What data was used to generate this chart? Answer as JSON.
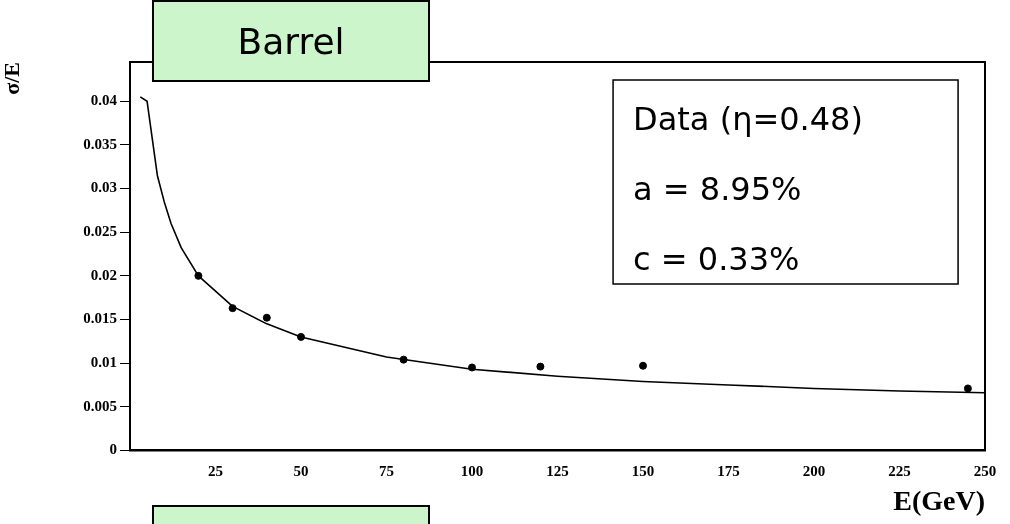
{
  "chart_data": {
    "type": "scatter",
    "title": "Barrel",
    "xlabel": "E(GeV)",
    "ylabel": "σ/E",
    "annotations": [
      "Data (η=0.48)",
      "a = 8.95%",
      "c = 0.33%"
    ],
    "xlim": [
      0,
      250
    ],
    "xticks": [
      25,
      50,
      75,
      100,
      125,
      150,
      175,
      200,
      225,
      250
    ],
    "ylim": [
      0,
      0.0445
    ],
    "yticks": [
      0,
      0.005,
      0.01,
      0.015,
      0.02,
      0.025,
      0.03,
      0.035,
      0.04
    ],
    "grid": false,
    "legend": false,
    "marker": "circle",
    "series": [
      {
        "color": "#000000",
        "x": [
          20,
          30,
          40,
          50,
          80,
          100,
          120,
          150,
          245
        ],
        "values": [
          0.02,
          0.0163,
          0.0152,
          0.013,
          0.0104,
          0.0095,
          0.0096,
          0.0097,
          0.0071
        ]
      },
      {
        "type": "line",
        "color": "#000000",
        "marker": "none",
        "x": [
          3,
          5,
          8,
          10,
          12,
          15,
          20,
          30,
          40,
          50,
          75,
          100,
          125,
          150,
          175,
          200,
          225,
          250
        ],
        "values": [
          0.0405,
          0.04,
          0.0315,
          0.0285,
          0.026,
          0.0232,
          0.02,
          0.0165,
          0.0145,
          0.013,
          0.0107,
          0.0093,
          0.0085,
          0.0079,
          0.0075,
          0.0071,
          0.0068,
          0.0066
        ]
      }
    ]
  }
}
